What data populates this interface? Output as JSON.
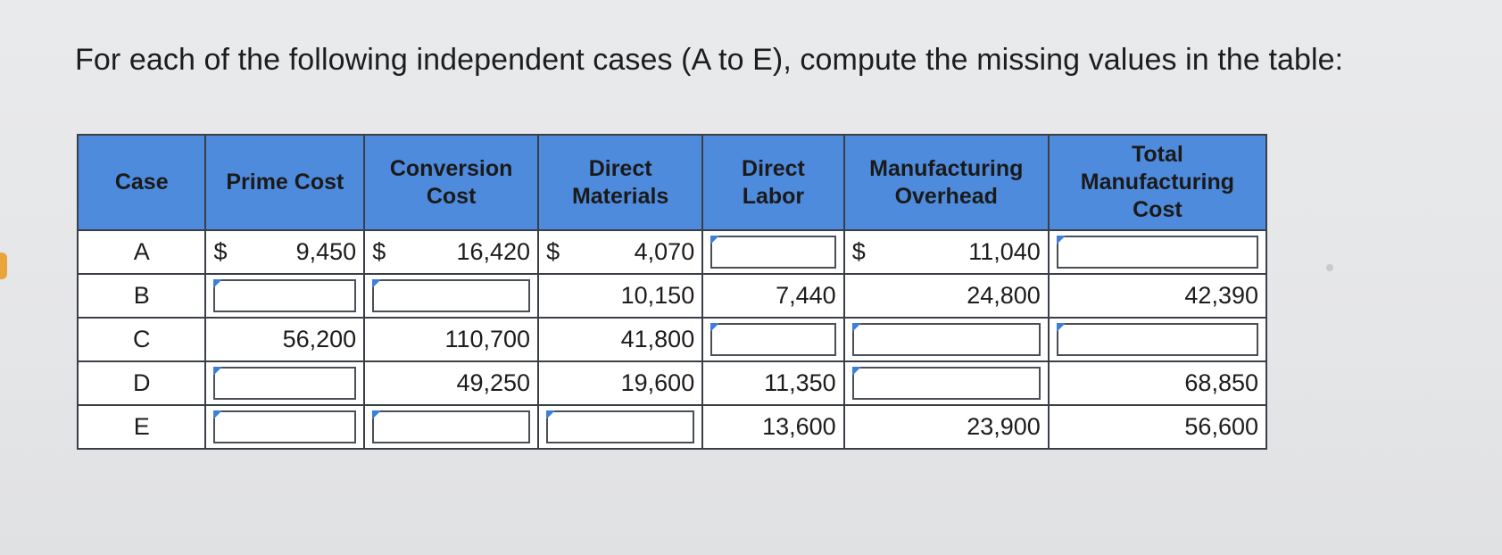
{
  "instruction": "For each of the following independent cases (A to E), compute the missing values in the table:",
  "table": {
    "headers": {
      "case": "Case",
      "prime_cost": "Prime Cost",
      "conversion_cost": "Conversion Cost",
      "direct_materials": "Direct Materials",
      "direct_labor": "Direct Labor",
      "manufacturing_overhead": "Manufacturing Overhead",
      "total_manufacturing_cost": "Total Manufacturing Cost"
    },
    "currency_symbol": "$",
    "rows": [
      {
        "case": "A",
        "prime_cost": "9,450",
        "conversion_cost": "16,420",
        "direct_materials": "4,070",
        "direct_labor": "",
        "manufacturing_overhead": "11,040",
        "total_manufacturing_cost": ""
      },
      {
        "case": "B",
        "prime_cost": "",
        "conversion_cost": "",
        "direct_materials": "10,150",
        "direct_labor": "7,440",
        "manufacturing_overhead": "24,800",
        "total_manufacturing_cost": "42,390"
      },
      {
        "case": "C",
        "prime_cost": "56,200",
        "conversion_cost": "110,700",
        "direct_materials": "41,800",
        "direct_labor": "",
        "manufacturing_overhead": "",
        "total_manufacturing_cost": ""
      },
      {
        "case": "D",
        "prime_cost": "",
        "conversion_cost": "49,250",
        "direct_materials": "19,600",
        "direct_labor": "11,350",
        "manufacturing_overhead": "",
        "total_manufacturing_cost": "68,850"
      },
      {
        "case": "E",
        "prime_cost": "",
        "conversion_cost": "",
        "direct_materials": "",
        "direct_labor": "13,600",
        "manufacturing_overhead": "23,900",
        "total_manufacturing_cost": "56,600"
      }
    ]
  }
}
